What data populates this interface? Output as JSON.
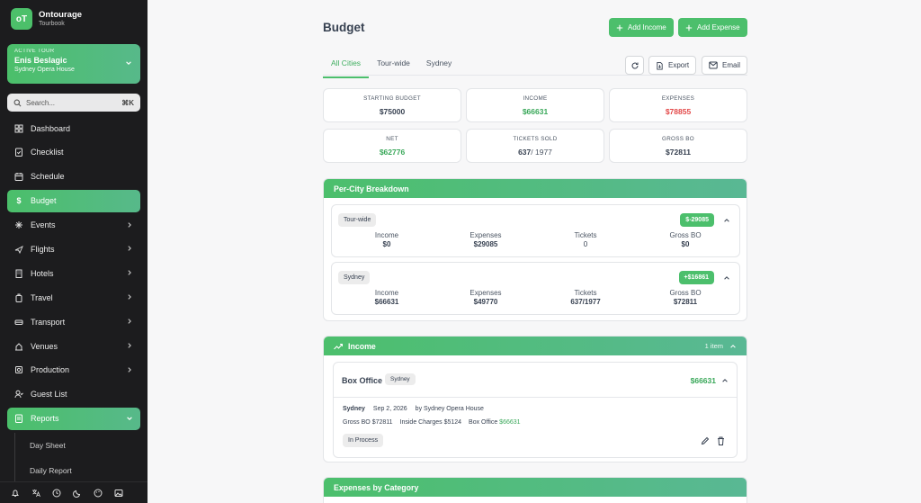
{
  "app": {
    "name": "Ontourage",
    "subtitle": "Tourbook",
    "logo_text": "oT"
  },
  "tour": {
    "label": "ACTIVE TOUR",
    "name": "Enis Beslagic",
    "venue": "Sydney Opera House"
  },
  "search": {
    "placeholder": "Search...",
    "shortcut": "⌘K"
  },
  "nav": [
    {
      "label": "Dashboard",
      "icon": "dashboard-icon"
    },
    {
      "label": "Checklist",
      "icon": "checklist-icon"
    },
    {
      "label": "Schedule",
      "icon": "calendar-icon"
    },
    {
      "label": "Budget",
      "icon": "dollar-icon"
    },
    {
      "label": "Events",
      "icon": "sparkle-icon"
    },
    {
      "label": "Flights",
      "icon": "plane-icon"
    },
    {
      "label": "Hotels",
      "icon": "building-icon"
    },
    {
      "label": "Travel",
      "icon": "luggage-icon"
    },
    {
      "label": "Transport",
      "icon": "car-icon"
    },
    {
      "label": "Venues",
      "icon": "venue-icon"
    },
    {
      "label": "Production",
      "icon": "production-icon"
    },
    {
      "label": "Guest List",
      "icon": "guest-icon"
    },
    {
      "label": "Reports",
      "icon": "report-icon"
    }
  ],
  "reports_sub": [
    {
      "label": "Day Sheet"
    },
    {
      "label": "Daily Report"
    }
  ],
  "footer_icons": [
    "bell-icon",
    "translate-icon",
    "clock-icon",
    "moon-icon",
    "palette-icon",
    "image-icon"
  ],
  "page": {
    "title": "Budget",
    "add_income": "Add Income",
    "add_expense": "Add Expense"
  },
  "tabs": [
    {
      "label": "All Cities"
    },
    {
      "label": "Tour-wide"
    },
    {
      "label": "Sydney"
    }
  ],
  "toolbar": {
    "export": "Export",
    "email": "Email"
  },
  "stats": [
    {
      "label": "STARTING BUDGET",
      "value": "$75000"
    },
    {
      "label": "INCOME",
      "value": "$66631"
    },
    {
      "label": "EXPENSES",
      "value": "$78855"
    },
    {
      "label": "NET",
      "value": "$62776"
    },
    {
      "label": "TICKETS SOLD",
      "value": "637",
      "value_suffix": "/ 1977"
    },
    {
      "label": "GROSS BO",
      "value": "$72811"
    }
  ],
  "per_city": {
    "title": "Per-City Breakdown",
    "cities": [
      {
        "name": "Tour-wide",
        "badge": "$-29085",
        "income_label": "Income",
        "income": "$0",
        "expenses_label": "Expenses",
        "expenses": "$29085",
        "tickets_label": "Tickets",
        "tickets": "0",
        "gross_label": "Gross BO",
        "gross": "$0"
      },
      {
        "name": "Sydney",
        "badge": "+$16861",
        "income_label": "Income",
        "income": "$66631",
        "expenses_label": "Expenses",
        "expenses": "$49770",
        "tickets_label": "Tickets",
        "tickets": "637/1977",
        "gross_label": "Gross BO",
        "gross": "$72811"
      }
    ]
  },
  "income": {
    "title": "Income",
    "count": "1 item",
    "item": {
      "name": "Box Office",
      "city_tag": "Sydney",
      "amount": "$66631",
      "city": "Sydney",
      "date": "Sep 2, 2026",
      "by": "by Sydney Opera House",
      "gross_label": "Gross BO",
      "gross": "$72811",
      "inside_label": "Inside Charges",
      "inside": "$5124",
      "box_label": "Box Office",
      "box": "$66631",
      "status": "In Process"
    }
  },
  "expenses_by_category": {
    "title": "Expenses by Category"
  },
  "colors": {
    "accent": "#4cbf6c",
    "positive": "#3aa85a",
    "negative": "#e34848",
    "sidebar_bg": "#1c1c1e"
  }
}
